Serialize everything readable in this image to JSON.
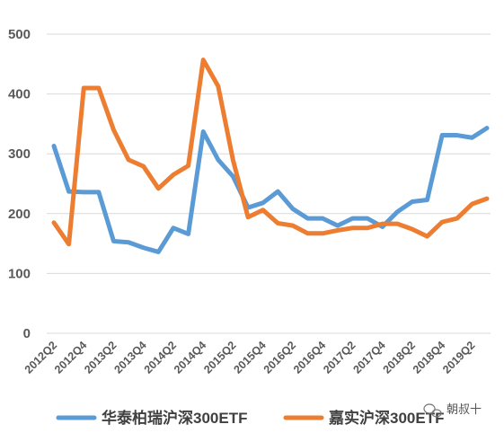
{
  "chart_data": {
    "type": "line",
    "title": "",
    "xlabel": "",
    "ylabel": "",
    "ylim": [
      0,
      500
    ],
    "yticks": [
      0,
      100,
      200,
      300,
      400,
      500
    ],
    "grid": true,
    "legend_position": "bottom",
    "categories": [
      "2012Q2",
      "2012Q3",
      "2012Q4",
      "2013Q1",
      "2013Q2",
      "2013Q3",
      "2013Q4",
      "2014Q1",
      "2014Q2",
      "2014Q3",
      "2014Q4",
      "2015Q1",
      "2015Q2",
      "2015Q3",
      "2015Q4",
      "2016Q1",
      "2016Q2",
      "2016Q3",
      "2016Q4",
      "2017Q1",
      "2017Q2",
      "2017Q3",
      "2017Q4",
      "2018Q1",
      "2018Q2",
      "2018Q3",
      "2018Q4",
      "2019Q1",
      "2019Q2",
      "2019Q3"
    ],
    "xtick_labels": [
      "2012Q2",
      "2012Q4",
      "2013Q2",
      "2013Q4",
      "2014Q2",
      "2014Q4",
      "2015Q2",
      "2015Q4",
      "2016Q2",
      "2016Q4",
      "2017Q2",
      "2017Q4",
      "2018Q2",
      "2018Q4",
      "2019Q2"
    ],
    "series": [
      {
        "name": "华泰柏瑞沪深300ETF",
        "color": "#5b9bd5",
        "values": [
          313,
          237,
          236,
          236,
          154,
          152,
          143,
          136,
          176,
          166,
          337,
          290,
          262,
          210,
          218,
          237,
          208,
          192,
          192,
          180,
          192,
          192,
          178,
          203,
          220,
          223,
          331,
          331,
          327,
          343
        ]
      },
      {
        "name": "嘉实沪深300ETF",
        "color": "#ed7d31",
        "values": [
          185,
          149,
          410,
          410,
          340,
          290,
          279,
          242,
          265,
          280,
          457,
          413,
          289,
          194,
          206,
          184,
          180,
          167,
          167,
          172,
          176,
          176,
          183,
          183,
          174,
          162,
          186,
          192,
          216,
          225
        ]
      }
    ]
  },
  "watermark": "朝叔十"
}
